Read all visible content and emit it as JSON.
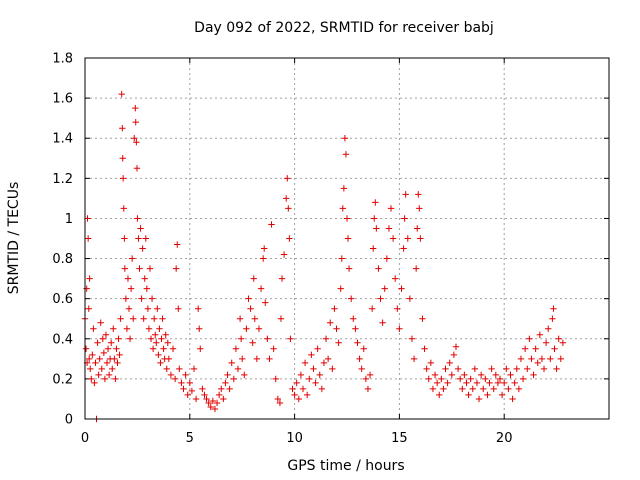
{
  "chart_data": {
    "type": "scatter",
    "title": "Day 092 of 2022, SRMTID for receiver babj",
    "xlabel": "GPS time / hours",
    "ylabel": "SRMTID / TECUs",
    "xlim": [
      0,
      25
    ],
    "ylim": [
      0,
      1.8
    ],
    "xticks": [
      0,
      5,
      10,
      15,
      20
    ],
    "xtick_labels": [
      "0",
      "5",
      "10",
      "15",
      "20"
    ],
    "yticks": [
      0,
      0.2,
      0.4,
      0.6,
      0.8,
      1,
      1.2,
      1.4,
      1.6,
      1.8
    ],
    "ytick_labels": [
      "0",
      "0.2",
      "0.4",
      "0.6",
      "0.8",
      "1",
      "1.2",
      "1.4",
      "1.6",
      "1.8"
    ],
    "grid": true,
    "marker": "+",
    "series": [
      {
        "name": "SRMTID",
        "color": "#e00000",
        "points": [
          [
            0.0,
            0.5
          ],
          [
            0.05,
            0.35
          ],
          [
            0.08,
            0.65
          ],
          [
            0.1,
            0.28
          ],
          [
            0.12,
            1.0
          ],
          [
            0.15,
            0.9
          ],
          [
            0.18,
            0.55
          ],
          [
            0.2,
            0.3
          ],
          [
            0.22,
            0.7
          ],
          [
            0.25,
            0.25
          ],
          [
            0.3,
            0.2
          ],
          [
            0.35,
            0.32
          ],
          [
            0.4,
            0.45
          ],
          [
            0.45,
            0.18
          ],
          [
            0.5,
            0.28
          ],
          [
            0.55,
            0.0
          ],
          [
            0.6,
            0.38
          ],
          [
            0.65,
            0.22
          ],
          [
            0.7,
            0.3
          ],
          [
            0.75,
            0.48
          ],
          [
            0.8,
            0.25
          ],
          [
            0.85,
            0.4
          ],
          [
            0.9,
            0.33
          ],
          [
            0.95,
            0.2
          ],
          [
            1.0,
            0.42
          ],
          [
            1.05,
            0.28
          ],
          [
            1.1,
            0.35
          ],
          [
            1.15,
            0.22
          ],
          [
            1.2,
            0.3
          ],
          [
            1.25,
            0.38
          ],
          [
            1.3,
            0.25
          ],
          [
            1.35,
            0.45
          ],
          [
            1.4,
            0.3
          ],
          [
            1.45,
            0.2
          ],
          [
            1.5,
            0.35
          ],
          [
            1.55,
            0.28
          ],
          [
            1.6,
            0.4
          ],
          [
            1.65,
            0.32
          ],
          [
            1.7,
            0.5
          ],
          [
            1.75,
            1.62
          ],
          [
            1.78,
            1.45
          ],
          [
            1.8,
            1.3
          ],
          [
            1.82,
            1.2
          ],
          [
            1.85,
            1.05
          ],
          [
            1.88,
            0.9
          ],
          [
            1.9,
            0.75
          ],
          [
            1.95,
            0.6
          ],
          [
            2.0,
            0.45
          ],
          [
            2.05,
            0.7
          ],
          [
            2.1,
            0.55
          ],
          [
            2.15,
            0.4
          ],
          [
            2.2,
            0.65
          ],
          [
            2.25,
            0.8
          ],
          [
            2.3,
            0.5
          ],
          [
            2.35,
            1.4
          ],
          [
            2.4,
            1.55
          ],
          [
            2.42,
            1.48
          ],
          [
            2.45,
            1.38
          ],
          [
            2.48,
            1.25
          ],
          [
            2.5,
            1.0
          ],
          [
            2.55,
            0.9
          ],
          [
            2.6,
            0.75
          ],
          [
            2.65,
            0.95
          ],
          [
            2.7,
            0.6
          ],
          [
            2.75,
            0.85
          ],
          [
            2.8,
            0.5
          ],
          [
            2.85,
            0.7
          ],
          [
            2.9,
            0.9
          ],
          [
            2.95,
            0.65
          ],
          [
            3.0,
            0.55
          ],
          [
            3.05,
            0.45
          ],
          [
            3.1,
            0.75
          ],
          [
            3.15,
            0.4
          ],
          [
            3.2,
            0.6
          ],
          [
            3.25,
            0.35
          ],
          [
            3.3,
            0.5
          ],
          [
            3.35,
            0.42
          ],
          [
            3.4,
            0.38
          ],
          [
            3.45,
            0.55
          ],
          [
            3.5,
            0.32
          ],
          [
            3.55,
            0.45
          ],
          [
            3.6,
            0.28
          ],
          [
            3.65,
            0.4
          ],
          [
            3.7,
            0.5
          ],
          [
            3.75,
            0.35
          ],
          [
            3.8,
            0.3
          ],
          [
            3.85,
            0.42
          ],
          [
            3.9,
            0.25
          ],
          [
            3.95,
            0.38
          ],
          [
            4.0,
            0.3
          ],
          [
            4.1,
            0.22
          ],
          [
            4.2,
            0.35
          ],
          [
            4.3,
            0.2
          ],
          [
            4.35,
            0.75
          ],
          [
            4.4,
            0.87
          ],
          [
            4.45,
            0.55
          ],
          [
            4.5,
            0.25
          ],
          [
            4.6,
            0.18
          ],
          [
            4.7,
            0.15
          ],
          [
            4.8,
            0.22
          ],
          [
            4.9,
            0.12
          ],
          [
            5.0,
            0.18
          ],
          [
            5.1,
            0.14
          ],
          [
            5.2,
            0.25
          ],
          [
            5.3,
            0.1
          ],
          [
            5.4,
            0.55
          ],
          [
            5.45,
            0.45
          ],
          [
            5.5,
            0.35
          ],
          [
            5.6,
            0.15
          ],
          [
            5.7,
            0.12
          ],
          [
            5.8,
            0.1
          ],
          [
            5.9,
            0.08
          ],
          [
            6.0,
            0.06
          ],
          [
            6.1,
            0.09
          ],
          [
            6.2,
            0.05
          ],
          [
            6.3,
            0.08
          ],
          [
            6.4,
            0.12
          ],
          [
            6.5,
            0.15
          ],
          [
            6.6,
            0.1
          ],
          [
            6.7,
            0.18
          ],
          [
            6.8,
            0.22
          ],
          [
            6.9,
            0.15
          ],
          [
            7.0,
            0.28
          ],
          [
            7.1,
            0.2
          ],
          [
            7.2,
            0.35
          ],
          [
            7.3,
            0.25
          ],
          [
            7.4,
            0.5
          ],
          [
            7.45,
            0.4
          ],
          [
            7.5,
            0.3
          ],
          [
            7.6,
            0.22
          ],
          [
            7.7,
            0.45
          ],
          [
            7.8,
            0.6
          ],
          [
            7.9,
            0.55
          ],
          [
            8.0,
            0.38
          ],
          [
            8.05,
            0.7
          ],
          [
            8.1,
            0.5
          ],
          [
            8.2,
            0.3
          ],
          [
            8.3,
            0.45
          ],
          [
            8.4,
            0.65
          ],
          [
            8.5,
            0.8
          ],
          [
            8.55,
            0.85
          ],
          [
            8.6,
            0.58
          ],
          [
            8.7,
            0.4
          ],
          [
            8.8,
            0.3
          ],
          [
            8.9,
            0.97
          ],
          [
            9.0,
            0.35
          ],
          [
            9.1,
            0.2
          ],
          [
            9.2,
            0.1
          ],
          [
            9.3,
            0.08
          ],
          [
            9.35,
            0.5
          ],
          [
            9.4,
            0.7
          ],
          [
            9.5,
            0.82
          ],
          [
            9.6,
            1.1
          ],
          [
            9.65,
            1.2
          ],
          [
            9.7,
            1.05
          ],
          [
            9.75,
            0.9
          ],
          [
            9.8,
            0.4
          ],
          [
            9.9,
            0.15
          ],
          [
            10.0,
            0.12
          ],
          [
            10.1,
            0.18
          ],
          [
            10.2,
            0.1
          ],
          [
            10.3,
            0.22
          ],
          [
            10.4,
            0.15
          ],
          [
            10.5,
            0.28
          ],
          [
            10.6,
            0.12
          ],
          [
            10.7,
            0.2
          ],
          [
            10.8,
            0.32
          ],
          [
            10.9,
            0.25
          ],
          [
            11.0,
            0.18
          ],
          [
            11.1,
            0.35
          ],
          [
            11.2,
            0.22
          ],
          [
            11.3,
            0.15
          ],
          [
            11.4,
            0.28
          ],
          [
            11.5,
            0.4
          ],
          [
            11.6,
            0.3
          ],
          [
            11.7,
            0.48
          ],
          [
            11.8,
            0.25
          ],
          [
            11.9,
            0.55
          ],
          [
            12.0,
            0.45
          ],
          [
            12.1,
            0.38
          ],
          [
            12.2,
            0.65
          ],
          [
            12.25,
            0.8
          ],
          [
            12.3,
            1.05
          ],
          [
            12.35,
            1.15
          ],
          [
            12.4,
            1.4
          ],
          [
            12.45,
            1.32
          ],
          [
            12.5,
            1.0
          ],
          [
            12.55,
            0.9
          ],
          [
            12.6,
            0.75
          ],
          [
            12.7,
            0.6
          ],
          [
            12.8,
            0.5
          ],
          [
            12.9,
            0.45
          ],
          [
            13.0,
            0.38
          ],
          [
            13.1,
            0.3
          ],
          [
            13.2,
            0.25
          ],
          [
            13.3,
            0.35
          ],
          [
            13.4,
            0.2
          ],
          [
            13.5,
            0.15
          ],
          [
            13.6,
            0.22
          ],
          [
            13.7,
            0.55
          ],
          [
            13.75,
            0.85
          ],
          [
            13.8,
            1.0
          ],
          [
            13.85,
            1.08
          ],
          [
            13.9,
            0.95
          ],
          [
            14.0,
            0.75
          ],
          [
            14.1,
            0.6
          ],
          [
            14.2,
            0.48
          ],
          [
            14.3,
            0.65
          ],
          [
            14.4,
            0.8
          ],
          [
            14.5,
            0.95
          ],
          [
            14.6,
            1.05
          ],
          [
            14.7,
            0.9
          ],
          [
            14.8,
            0.7
          ],
          [
            14.9,
            0.55
          ],
          [
            15.0,
            0.45
          ],
          [
            15.1,
            0.65
          ],
          [
            15.2,
            0.85
          ],
          [
            15.25,
            1.0
          ],
          [
            15.3,
            1.12
          ],
          [
            15.4,
            0.9
          ],
          [
            15.5,
            0.6
          ],
          [
            15.6,
            0.4
          ],
          [
            15.7,
            0.3
          ],
          [
            15.8,
            0.75
          ],
          [
            15.85,
            0.95
          ],
          [
            15.9,
            1.12
          ],
          [
            15.95,
            1.05
          ],
          [
            16.0,
            0.9
          ],
          [
            16.1,
            0.5
          ],
          [
            16.2,
            0.35
          ],
          [
            16.3,
            0.25
          ],
          [
            16.4,
            0.2
          ],
          [
            16.5,
            0.28
          ],
          [
            16.6,
            0.15
          ],
          [
            16.7,
            0.22
          ],
          [
            16.8,
            0.18
          ],
          [
            16.9,
            0.12
          ],
          [
            17.0,
            0.2
          ],
          [
            17.1,
            0.15
          ],
          [
            17.2,
            0.25
          ],
          [
            17.3,
            0.18
          ],
          [
            17.4,
            0.28
          ],
          [
            17.5,
            0.22
          ],
          [
            17.6,
            0.32
          ],
          [
            17.7,
            0.36
          ],
          [
            17.8,
            0.25
          ],
          [
            17.9,
            0.2
          ],
          [
            18.0,
            0.15
          ],
          [
            18.1,
            0.22
          ],
          [
            18.2,
            0.18
          ],
          [
            18.3,
            0.12
          ],
          [
            18.4,
            0.2
          ],
          [
            18.5,
            0.15
          ],
          [
            18.6,
            0.25
          ],
          [
            18.7,
            0.18
          ],
          [
            18.8,
            0.1
          ],
          [
            18.9,
            0.22
          ],
          [
            19.0,
            0.15
          ],
          [
            19.1,
            0.2
          ],
          [
            19.2,
            0.12
          ],
          [
            19.3,
            0.18
          ],
          [
            19.4,
            0.25
          ],
          [
            19.5,
            0.15
          ],
          [
            19.6,
            0.22
          ],
          [
            19.7,
            0.18
          ],
          [
            19.8,
            0.2
          ],
          [
            19.9,
            0.12
          ],
          [
            20.0,
            0.18
          ],
          [
            20.1,
            0.25
          ],
          [
            20.2,
            0.15
          ],
          [
            20.3,
            0.22
          ],
          [
            20.4,
            0.1
          ],
          [
            20.5,
            0.18
          ],
          [
            20.6,
            0.25
          ],
          [
            20.7,
            0.15
          ],
          [
            20.8,
            0.3
          ],
          [
            20.9,
            0.2
          ],
          [
            21.0,
            0.35
          ],
          [
            21.1,
            0.25
          ],
          [
            21.2,
            0.4
          ],
          [
            21.3,
            0.3
          ],
          [
            21.4,
            0.22
          ],
          [
            21.5,
            0.35
          ],
          [
            21.6,
            0.28
          ],
          [
            21.7,
            0.42
          ],
          [
            21.8,
            0.3
          ],
          [
            21.9,
            0.25
          ],
          [
            22.0,
            0.38
          ],
          [
            22.1,
            0.45
          ],
          [
            22.2,
            0.3
          ],
          [
            22.3,
            0.5
          ],
          [
            22.35,
            0.55
          ],
          [
            22.4,
            0.35
          ],
          [
            22.5,
            0.25
          ],
          [
            22.6,
            0.4
          ],
          [
            22.7,
            0.3
          ],
          [
            22.8,
            0.38
          ]
        ]
      }
    ]
  }
}
